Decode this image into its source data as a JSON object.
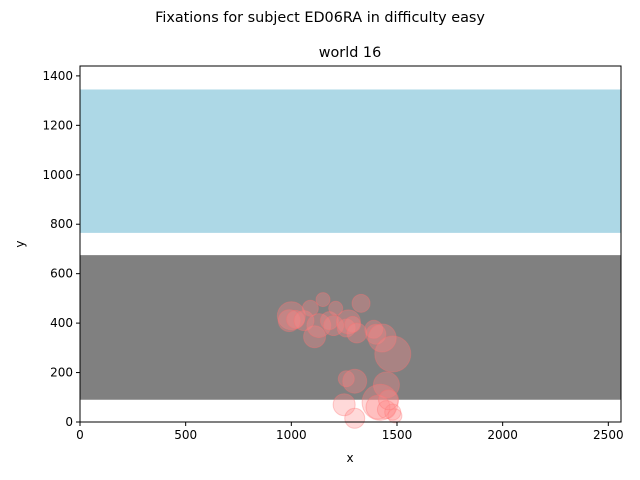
{
  "chart_data": {
    "type": "scatter",
    "suptitle": "Fixations for subject ED06RA in difficulty easy",
    "title": "world 16",
    "xlabel": "x",
    "ylabel": "y",
    "xlim": [
      0,
      2560
    ],
    "ylim": [
      0,
      1440
    ],
    "xticks": [
      0,
      500,
      1000,
      1500,
      2000,
      2500
    ],
    "yticks": [
      0,
      200,
      400,
      600,
      800,
      1000,
      1200,
      1400
    ],
    "grid": false,
    "regions": [
      {
        "y0": 765,
        "y1": 1345,
        "color": "#add8e6"
      },
      {
        "y0": 90,
        "y1": 675,
        "color": "#808080"
      }
    ],
    "fixation_color": "#ff8080",
    "points": [
      {
        "x": 1000,
        "y": 430,
        "size": 14
      },
      {
        "x": 990,
        "y": 410,
        "size": 11
      },
      {
        "x": 1020,
        "y": 415,
        "size": 9
      },
      {
        "x": 1060,
        "y": 410,
        "size": 10
      },
      {
        "x": 1090,
        "y": 460,
        "size": 8
      },
      {
        "x": 1110,
        "y": 345,
        "size": 11
      },
      {
        "x": 1130,
        "y": 390,
        "size": 12
      },
      {
        "x": 1150,
        "y": 495,
        "size": 7
      },
      {
        "x": 1180,
        "y": 410,
        "size": 9
      },
      {
        "x": 1200,
        "y": 390,
        "size": 10
      },
      {
        "x": 1210,
        "y": 460,
        "size": 7
      },
      {
        "x": 1260,
        "y": 380,
        "size": 9
      },
      {
        "x": 1270,
        "y": 405,
        "size": 12
      },
      {
        "x": 1290,
        "y": 395,
        "size": 8
      },
      {
        "x": 1310,
        "y": 360,
        "size": 10
      },
      {
        "x": 1330,
        "y": 480,
        "size": 9
      },
      {
        "x": 1390,
        "y": 375,
        "size": 9
      },
      {
        "x": 1400,
        "y": 355,
        "size": 10
      },
      {
        "x": 1430,
        "y": 340,
        "size": 14
      },
      {
        "x": 1480,
        "y": 275,
        "size": 18
      },
      {
        "x": 1450,
        "y": 150,
        "size": 13
      },
      {
        "x": 1260,
        "y": 175,
        "size": 8
      },
      {
        "x": 1300,
        "y": 165,
        "size": 12
      },
      {
        "x": 1250,
        "y": 70,
        "size": 11
      },
      {
        "x": 1300,
        "y": 15,
        "size": 10
      },
      {
        "x": 1420,
        "y": 80,
        "size": 18
      },
      {
        "x": 1410,
        "y": 60,
        "size": 12
      },
      {
        "x": 1450,
        "y": 50,
        "size": 9
      },
      {
        "x": 1480,
        "y": 40,
        "size": 8
      },
      {
        "x": 1460,
        "y": 90,
        "size": 10
      },
      {
        "x": 1490,
        "y": 25,
        "size": 7
      }
    ]
  }
}
